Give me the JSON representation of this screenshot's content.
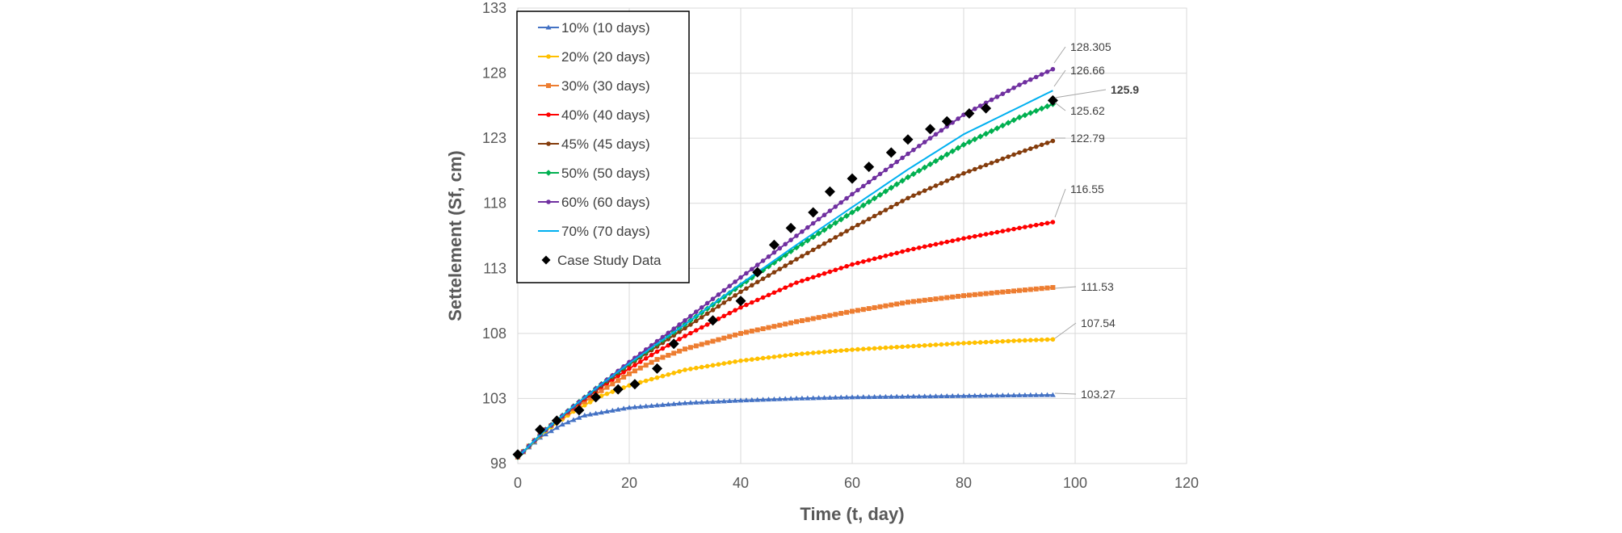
{
  "chart_data": {
    "type": "line",
    "title": "",
    "xlabel": "Time (t, day)",
    "ylabel": "Settelement (Sf, cm)",
    "xlim": [
      0,
      120
    ],
    "ylim": [
      98,
      133
    ],
    "xticks": [
      0,
      20,
      40,
      60,
      80,
      100,
      120
    ],
    "yticks": [
      98,
      103,
      108,
      113,
      118,
      123,
      128,
      133
    ],
    "grid": true,
    "legend_position": "top-left",
    "series": [
      {
        "name": "10% (10 days)",
        "color": "#4472C4",
        "marker": "triangle",
        "x_start": 0,
        "x_end": 96,
        "y_start": 98.5,
        "y_end": 103.27,
        "curve": [
          [
            0,
            98.5
          ],
          [
            4,
            100.0
          ],
          [
            8,
            101.0
          ],
          [
            12,
            101.7
          ],
          [
            16,
            102.0
          ],
          [
            20,
            102.3
          ],
          [
            30,
            102.65
          ],
          [
            40,
            102.85
          ],
          [
            50,
            103.0
          ],
          [
            60,
            103.1
          ],
          [
            70,
            103.15
          ],
          [
            80,
            103.2
          ],
          [
            90,
            103.25
          ],
          [
            96,
            103.27
          ]
        ]
      },
      {
        "name": "20% (20 days)",
        "color": "#FFC000",
        "marker": "circle",
        "x_start": 0,
        "x_end": 96,
        "y_start": 98.5,
        "y_end": 107.54,
        "curve": [
          [
            0,
            98.5
          ],
          [
            5,
            100.5
          ],
          [
            10,
            102.0
          ],
          [
            15,
            103.2
          ],
          [
            20,
            104.0
          ],
          [
            25,
            104.6
          ],
          [
            30,
            105.2
          ],
          [
            40,
            105.9
          ],
          [
            50,
            106.4
          ],
          [
            60,
            106.75
          ],
          [
            70,
            107.0
          ],
          [
            80,
            107.25
          ],
          [
            90,
            107.45
          ],
          [
            96,
            107.54
          ]
        ]
      },
      {
        "name": "30% (30 days)",
        "color": "#ED7D31",
        "marker": "square",
        "x_start": 0,
        "x_end": 96,
        "y_start": 98.5,
        "y_end": 111.53,
        "curve": [
          [
            0,
            98.5
          ],
          [
            5,
            100.6
          ],
          [
            10,
            102.2
          ],
          [
            15,
            103.6
          ],
          [
            20,
            104.9
          ],
          [
            25,
            106.0
          ],
          [
            30,
            106.8
          ],
          [
            40,
            108.0
          ],
          [
            50,
            108.9
          ],
          [
            60,
            109.7
          ],
          [
            70,
            110.4
          ],
          [
            80,
            110.9
          ],
          [
            90,
            111.3
          ],
          [
            96,
            111.53
          ]
        ]
      },
      {
        "name": "40% (40 days)",
        "color": "#FF0000",
        "marker": "circle",
        "x_start": 0,
        "x_end": 96,
        "y_start": 98.5,
        "y_end": 116.55,
        "curve": [
          [
            0,
            98.5
          ],
          [
            5,
            100.6
          ],
          [
            10,
            102.3
          ],
          [
            15,
            103.9
          ],
          [
            20,
            105.3
          ],
          [
            25,
            106.6
          ],
          [
            30,
            107.8
          ],
          [
            40,
            110.0
          ],
          [
            50,
            111.9
          ],
          [
            60,
            113.3
          ],
          [
            70,
            114.4
          ],
          [
            80,
            115.3
          ],
          [
            90,
            116.1
          ],
          [
            96,
            116.55
          ]
        ]
      },
      {
        "name": "45% (45 days)",
        "color": "#843C0C",
        "marker": "circle",
        "x_start": 0,
        "x_end": 96,
        "y_start": 98.5,
        "y_end": 122.79,
        "curve": [
          [
            0,
            98.5
          ],
          [
            5,
            100.6
          ],
          [
            10,
            102.4
          ],
          [
            15,
            104.0
          ],
          [
            20,
            105.6
          ],
          [
            25,
            107.0
          ],
          [
            30,
            108.4
          ],
          [
            40,
            111.2
          ],
          [
            50,
            113.7
          ],
          [
            60,
            116.1
          ],
          [
            70,
            118.4
          ],
          [
            80,
            120.3
          ],
          [
            90,
            121.9
          ],
          [
            96,
            122.79
          ]
        ]
      },
      {
        "name": "50% (50 days)",
        "color": "#00B050",
        "marker": "diamond",
        "x_start": 0,
        "x_end": 96,
        "y_start": 98.5,
        "y_end": 125.62,
        "curve": [
          [
            0,
            98.5
          ],
          [
            5,
            100.6
          ],
          [
            10,
            102.4
          ],
          [
            15,
            104.1
          ],
          [
            20,
            105.7
          ],
          [
            25,
            107.2
          ],
          [
            30,
            108.7
          ],
          [
            40,
            111.7
          ],
          [
            50,
            114.6
          ],
          [
            60,
            117.3
          ],
          [
            70,
            120.0
          ],
          [
            80,
            122.5
          ],
          [
            90,
            124.6
          ],
          [
            96,
            125.62
          ]
        ]
      },
      {
        "name": "60% (60 days)",
        "color": "#7030A0",
        "marker": "circle",
        "x_start": 0,
        "x_end": 96,
        "y_start": 98.5,
        "y_end": 128.305,
        "curve": [
          [
            0,
            98.5
          ],
          [
            5,
            100.6
          ],
          [
            10,
            102.4
          ],
          [
            15,
            104.1
          ],
          [
            20,
            105.8
          ],
          [
            25,
            107.4
          ],
          [
            30,
            109.0
          ],
          [
            40,
            112.3
          ],
          [
            50,
            115.5
          ],
          [
            60,
            118.7
          ],
          [
            70,
            121.8
          ],
          [
            80,
            124.8
          ],
          [
            90,
            127.1
          ],
          [
            96,
            128.305
          ]
        ]
      },
      {
        "name": "70% (70 days)",
        "color": "#00B0F0",
        "marker": "none",
        "x_start": 0,
        "x_end": 96,
        "y_start": 98.5,
        "y_end": 126.66,
        "curve": [
          [
            0,
            98.5
          ],
          [
            5,
            100.6
          ],
          [
            10,
            102.4
          ],
          [
            15,
            104.1
          ],
          [
            20,
            105.7
          ],
          [
            25,
            107.2
          ],
          [
            30,
            108.7
          ],
          [
            40,
            111.8
          ],
          [
            50,
            114.8
          ],
          [
            60,
            117.7
          ],
          [
            70,
            120.6
          ],
          [
            80,
            123.3
          ],
          [
            90,
            125.4
          ],
          [
            96,
            126.66
          ]
        ]
      }
    ],
    "scatter_series": {
      "name": "Case Study Data",
      "color": "#000000",
      "marker": "diamond",
      "points": [
        [
          0,
          98.7
        ],
        [
          4,
          100.6
        ],
        [
          7,
          101.3
        ],
        [
          11,
          102.1
        ],
        [
          14,
          103.1
        ],
        [
          18,
          103.7
        ],
        [
          21,
          104.1
        ],
        [
          25,
          105.3
        ],
        [
          28,
          107.2
        ],
        [
          35,
          109.0
        ],
        [
          40,
          110.5
        ],
        [
          43,
          112.7
        ],
        [
          46,
          114.8
        ],
        [
          49,
          116.1
        ],
        [
          53,
          117.3
        ],
        [
          56,
          118.9
        ],
        [
          60,
          119.9
        ],
        [
          63,
          120.8
        ],
        [
          67,
          121.9
        ],
        [
          70,
          122.9
        ],
        [
          74,
          123.7
        ],
        [
          77,
          124.3
        ],
        [
          81,
          124.9
        ],
        [
          84,
          125.3
        ],
        [
          96,
          125.9
        ]
      ]
    },
    "end_labels": [
      {
        "text": "128.305",
        "series": "60% (60 days)",
        "bold": false
      },
      {
        "text": "126.66",
        "series": "70% (70 days)",
        "bold": false
      },
      {
        "text": "125.9",
        "series": "Case Study Data",
        "bold": true
      },
      {
        "text": "125.62",
        "series": "50% (50 days)",
        "bold": false
      },
      {
        "text": "122.79",
        "series": "45% (45 days)",
        "bold": false
      },
      {
        "text": "116.55",
        "series": "40% (40 days)",
        "bold": false
      },
      {
        "text": "111.53",
        "series": "30% (30 days)",
        "bold": false
      },
      {
        "text": "107.54",
        "series": "20% (20 days)",
        "bold": false
      },
      {
        "text": "103.27",
        "series": "10% (10 days)",
        "bold": false
      }
    ]
  }
}
